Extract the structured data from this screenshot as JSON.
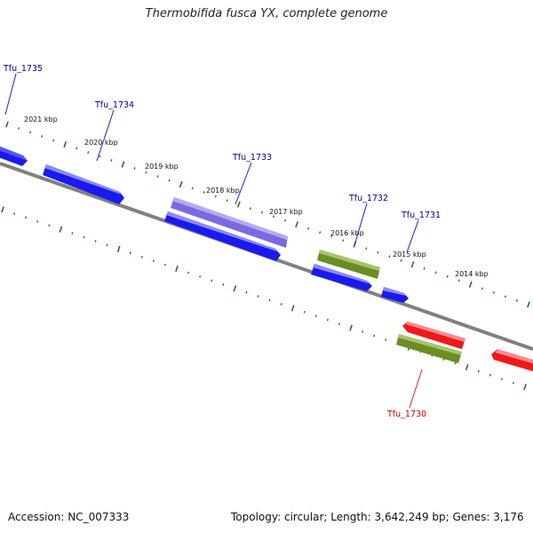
{
  "title": "Thermobifida fusca YX, complete genome",
  "footer": {
    "accession": "Accession: NC_007333",
    "summary": "Topology: circular; Length: 3,642,249 bp; Genes: 3,176"
  },
  "colors": {
    "backbone": "#808080",
    "tick": "#1a7a1a",
    "forward_cds": "#1a1aee",
    "rna": "#7a6ae0",
    "other": "#6b8e23",
    "reverse_cds": "#ee1a1a",
    "label_blue": "#00008b",
    "label_red": "#cc0000"
  },
  "tick_labels": [
    "2021 kbp",
    "2020 kbp",
    "2019 kbp",
    "2018 kbp",
    "2017 kbp",
    "2016 kbp",
    "2015 kbp",
    "2014 kbp"
  ],
  "gene_labels": [
    "Tfu_1735",
    "Tfu_1734",
    "Tfu_1733",
    "Tfu_1732",
    "Tfu_1731",
    "Tfu_1730"
  ]
}
